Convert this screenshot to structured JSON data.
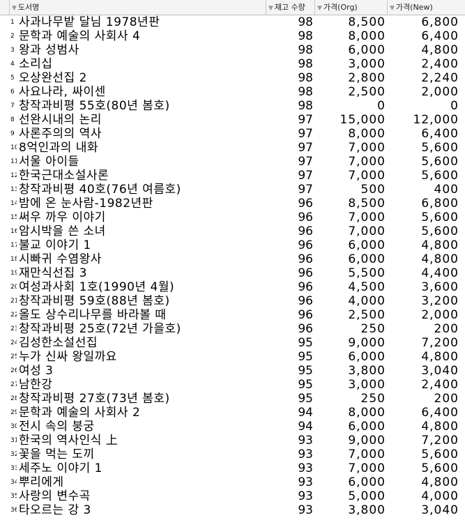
{
  "columns": {
    "title": "도서명",
    "quantity": "재고 수량",
    "price_org": "가격(Org)",
    "price_new": "가격(New)"
  },
  "rows": [
    {
      "no": "1",
      "title": "사과나무밭 달님 1978년판",
      "qty": "98",
      "org": "8,500",
      "new": "6,800"
    },
    {
      "no": "2",
      "title": "문학과 예술의 사회사 4",
      "qty": "98",
      "org": "8,000",
      "new": "6,400"
    },
    {
      "no": "3",
      "title": "왕과 성범사",
      "qty": "98",
      "org": "6,000",
      "new": "4,800"
    },
    {
      "no": "4",
      "title": "소리십",
      "qty": "98",
      "org": "3,000",
      "new": "2,400"
    },
    {
      "no": "5",
      "title": "오상완선집 2",
      "qty": "98",
      "org": "2,800",
      "new": "2,240"
    },
    {
      "no": "6",
      "title": "사요나라, 싸이센",
      "qty": "98",
      "org": "2,500",
      "new": "2,000"
    },
    {
      "no": "7",
      "title": "창작과비평 55호(80년 봄호)",
      "qty": "98",
      "org": "0",
      "new": "0"
    },
    {
      "no": "8",
      "title": "선완시내의 논리",
      "qty": "97",
      "org": "15,000",
      "new": "12,000"
    },
    {
      "no": "9",
      "title": "사론주의의 역사",
      "qty": "97",
      "org": "8,000",
      "new": "6,400"
    },
    {
      "no": "10",
      "title": "8억인과의 내화",
      "qty": "97",
      "org": "7,000",
      "new": "5,600"
    },
    {
      "no": "11",
      "title": "서울 아이들",
      "qty": "97",
      "org": "7,000",
      "new": "5,600"
    },
    {
      "no": "12",
      "title": "한국근대소설사론",
      "qty": "97",
      "org": "7,000",
      "new": "5,600"
    },
    {
      "no": "13",
      "title": "창작과비평 40호(76년 여름호)",
      "qty": "97",
      "org": "500",
      "new": "400"
    },
    {
      "no": "14",
      "title": "밤에 온 눈사람-1982년판",
      "qty": "96",
      "org": "8,500",
      "new": "6,800"
    },
    {
      "no": "15",
      "title": "써우 까우 이야기",
      "qty": "96",
      "org": "7,000",
      "new": "5,600"
    },
    {
      "no": "16",
      "title": "암시박을 쓴 소녀",
      "qty": "96",
      "org": "7,000",
      "new": "5,600"
    },
    {
      "no": "17",
      "title": "불교 이야기 1",
      "qty": "96",
      "org": "6,000",
      "new": "4,800"
    },
    {
      "no": "18",
      "title": "시빠귀 수염왕사",
      "qty": "96",
      "org": "6,000",
      "new": "4,800"
    },
    {
      "no": "19",
      "title": "재만식선집 3",
      "qty": "96",
      "org": "5,500",
      "new": "4,400"
    },
    {
      "no": "20",
      "title": "여성과사회 1호(1990년 4월)",
      "qty": "96",
      "org": "4,500",
      "new": "3,600"
    },
    {
      "no": "21",
      "title": "창작과비평 59호(88년 봄호)",
      "qty": "96",
      "org": "4,000",
      "new": "3,200"
    },
    {
      "no": "22",
      "title": "올도 상수리나무를 바라볼 때",
      "qty": "96",
      "org": "2,500",
      "new": "2,000"
    },
    {
      "no": "23",
      "title": "창작과비평 25호(72년 가을호)",
      "qty": "96",
      "org": "250",
      "new": "200"
    },
    {
      "no": "24",
      "title": "김성한소설선집",
      "qty": "95",
      "org": "9,000",
      "new": "7,200"
    },
    {
      "no": "25",
      "title": "누가 신싸 왕일까요",
      "qty": "95",
      "org": "6,000",
      "new": "4,800"
    },
    {
      "no": "26",
      "title": "여성 3",
      "qty": "95",
      "org": "3,800",
      "new": "3,040"
    },
    {
      "no": "27",
      "title": "남한강",
      "qty": "95",
      "org": "3,000",
      "new": "2,400"
    },
    {
      "no": "28",
      "title": "창작과비평 27호(73년 봄호)",
      "qty": "95",
      "org": "250",
      "new": "200"
    },
    {
      "no": "29",
      "title": "문학과 예술의 사회사 2",
      "qty": "94",
      "org": "8,000",
      "new": "6,400"
    },
    {
      "no": "30",
      "title": "전시 속의 붕궁",
      "qty": "94",
      "org": "6,000",
      "new": "4,800"
    },
    {
      "no": "31",
      "title": "한국의 역사인식 上",
      "qty": "93",
      "org": "9,000",
      "new": "7,200"
    },
    {
      "no": "32",
      "title": "꽃을 먹는 도끼",
      "qty": "93",
      "org": "7,000",
      "new": "5,600"
    },
    {
      "no": "33",
      "title": "세주노 이야기 1",
      "qty": "93",
      "org": "7,000",
      "new": "5,600"
    },
    {
      "no": "34",
      "title": "뿌리에게",
      "qty": "93",
      "org": "6,000",
      "new": "4,800"
    },
    {
      "no": "35",
      "title": "사랑의 변수곡",
      "qty": "93",
      "org": "5,000",
      "new": "4,000"
    },
    {
      "no": "36",
      "title": "타오르는 강 3",
      "qty": "93",
      "org": "3,800",
      "new": "3,040"
    }
  ]
}
